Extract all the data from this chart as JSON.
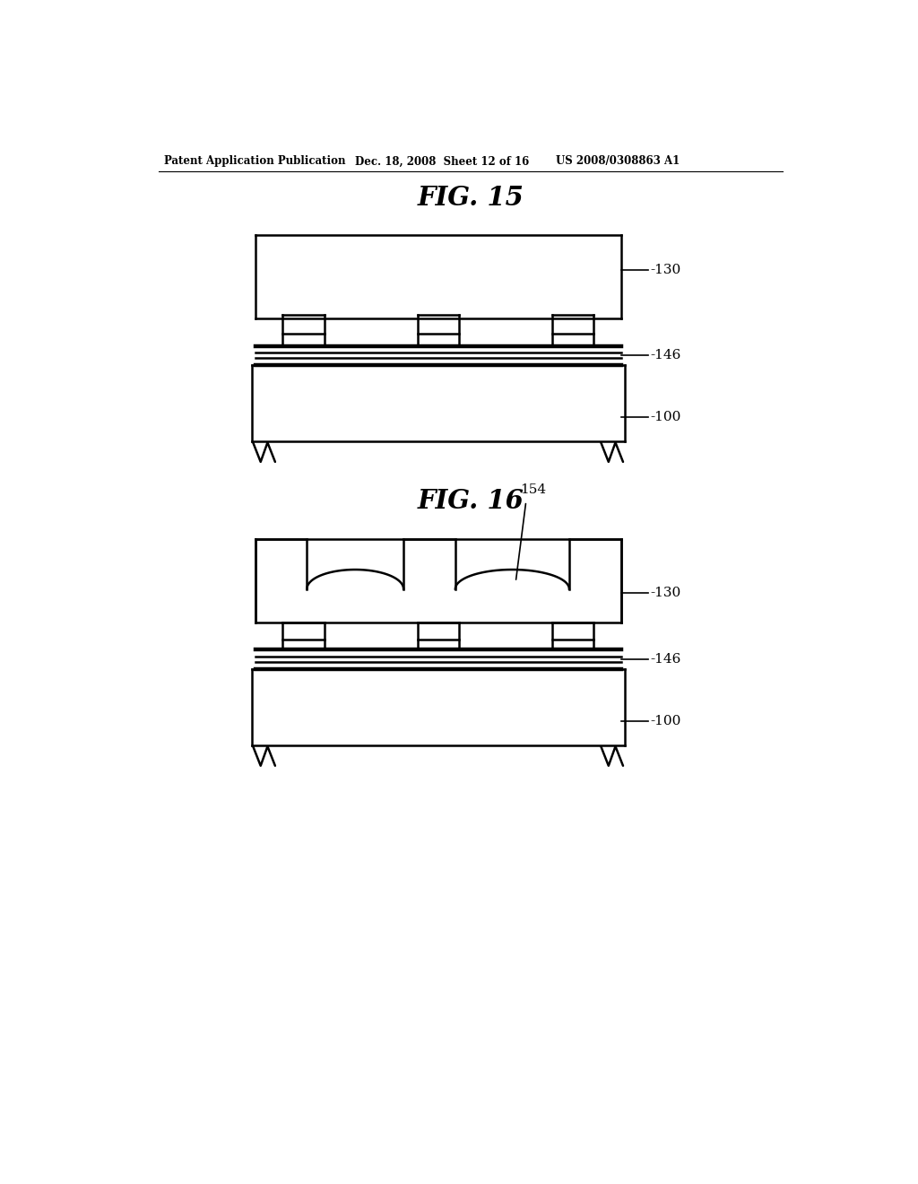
{
  "bg_color": "#ffffff",
  "line_color": "#000000",
  "header_text": "Patent Application Publication",
  "header_date": "Dec. 18, 2008  Sheet 12 of 16",
  "header_patent": "US 2008/0308863 A1",
  "fig15_title": "FIG. 15",
  "fig16_title": "FIG. 16",
  "label_130": "-130",
  "label_146": "-146",
  "label_100": "-100",
  "label_154": "154"
}
